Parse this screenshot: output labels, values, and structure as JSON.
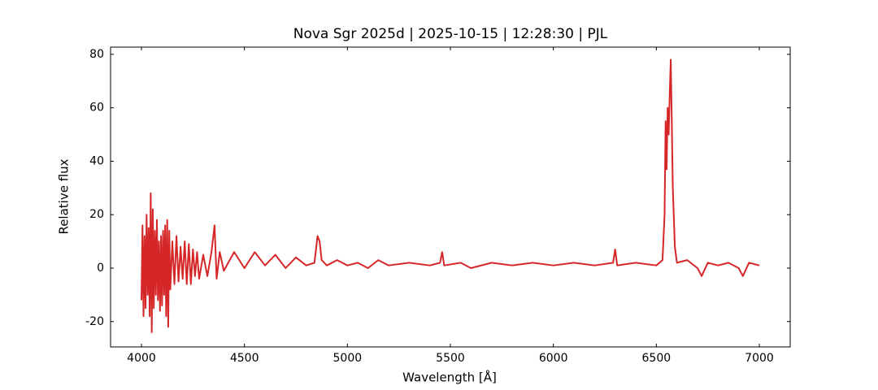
{
  "chart_data": {
    "type": "line",
    "title": "Nova Sgr 2025d | 2025-10-15 | 12:28:30 | PJL",
    "x_label": "Wavelength [Å]",
    "y_label": "Relative flux",
    "xlim": [
      3850,
      7150
    ],
    "ylim": [
      -29.5,
      82.7
    ],
    "xticks": [
      4000,
      4500,
      5000,
      5500,
      6000,
      6500,
      7000
    ],
    "yticks": [
      -20,
      0,
      20,
      40,
      60,
      80
    ],
    "grid": false,
    "series": [
      {
        "color": "#d62728",
        "x": [
          4000,
          4005,
          4010,
          4015,
          4020,
          4025,
          4030,
          4035,
          4040,
          4045,
          4050,
          4055,
          4060,
          4065,
          4070,
          4075,
          4080,
          4085,
          4090,
          4095,
          4100,
          4105,
          4110,
          4115,
          4120,
          4125,
          4130,
          4135,
          4140,
          4150,
          4160,
          4170,
          4180,
          4190,
          4200,
          4210,
          4220,
          4230,
          4240,
          4250,
          4260,
          4270,
          4280,
          4300,
          4320,
          4340,
          4355,
          4365,
          4380,
          4400,
          4450,
          4500,
          4550,
          4600,
          4650,
          4700,
          4750,
          4800,
          4840,
          4855,
          4865,
          4875,
          4900,
          4950,
          5000,
          5050,
          5100,
          5150,
          5200,
          5300,
          5400,
          5450,
          5460,
          5470,
          5550,
          5600,
          5700,
          5800,
          5900,
          6000,
          6100,
          6200,
          6290,
          6300,
          6310,
          6400,
          6500,
          6530,
          6540,
          6545,
          6550,
          6555,
          6560,
          6565,
          6570,
          6575,
          6580,
          6590,
          6600,
          6650,
          6700,
          6720,
          6750,
          6800,
          6850,
          6900,
          6920,
          6950,
          7000
        ],
        "values": [
          -12,
          16,
          -18,
          12,
          -15,
          20,
          -10,
          15,
          -18,
          28,
          -24,
          22,
          -15,
          14,
          -10,
          18,
          -12,
          10,
          -16,
          12,
          -14,
          14,
          -10,
          16,
          -18,
          18,
          -22,
          14,
          -8,
          10,
          -6,
          12,
          -5,
          8,
          -4,
          10,
          -6,
          9,
          -6,
          7,
          -3,
          6,
          -4,
          5,
          -3,
          6,
          16,
          -4,
          6,
          -1,
          6,
          0,
          6,
          1,
          5,
          0,
          4,
          1,
          2,
          12,
          10,
          3,
          1,
          3,
          1,
          2,
          0,
          3,
          1,
          2,
          1,
          2,
          6,
          1,
          2,
          0,
          2,
          1,
          2,
          1,
          2,
          1,
          2,
          7,
          1,
          2,
          1,
          3,
          20,
          55,
          37,
          60,
          50,
          65,
          78,
          55,
          30,
          8,
          2,
          3,
          0,
          -3,
          2,
          1,
          2,
          0,
          -3,
          2,
          1
        ]
      }
    ]
  }
}
